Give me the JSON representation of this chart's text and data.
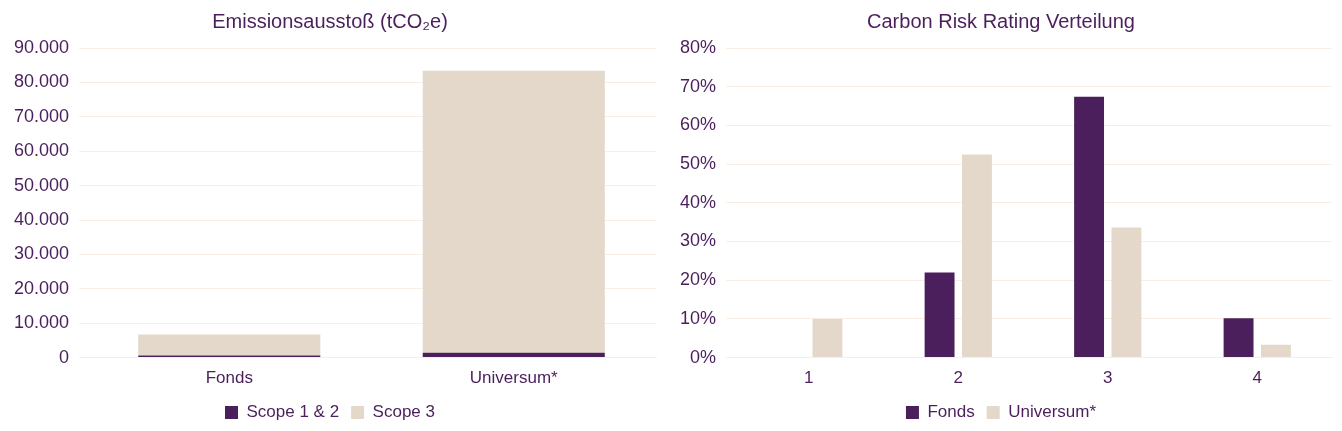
{
  "chart_data": [
    {
      "type": "bar",
      "title": "Emissionsausstoß (tCO₂e)",
      "categories": [
        "Fonds",
        "Universum*"
      ],
      "stacked": true,
      "series": [
        {
          "name": "Scope 1 & 2",
          "color": "#4a1f5c",
          "values": [
            600,
            1400
          ]
        },
        {
          "name": "Scope 3",
          "color": "#e3d8c9",
          "values": [
            6100,
            82000
          ]
        }
      ],
      "ylim": [
        0,
        90000
      ],
      "yticks": [
        {
          "value": 0,
          "label": "0"
        },
        {
          "value": 10000,
          "label": "10.000"
        },
        {
          "value": 20000,
          "label": "20.000"
        },
        {
          "value": 30000,
          "label": "30.000"
        },
        {
          "value": 40000,
          "label": "40.000"
        },
        {
          "value": 50000,
          "label": "50.000"
        },
        {
          "value": 60000,
          "label": "60.000"
        },
        {
          "value": 70000,
          "label": "70.000"
        },
        {
          "value": 80000,
          "label": "80.000"
        },
        {
          "value": 90000,
          "label": "90.000"
        }
      ],
      "grid": "y",
      "legend": "bottom"
    },
    {
      "type": "bar",
      "title": "Carbon Risk Rating Verteilung",
      "categories": [
        "1",
        "2",
        "3",
        "4"
      ],
      "series": [
        {
          "name": "Fonds",
          "color": "#4a1f5c",
          "values": [
            0,
            22,
            67.4,
            10.2
          ]
        },
        {
          "name": "Universum*",
          "color": "#e3d8c9",
          "values": [
            10,
            52.5,
            33.6,
            3.3
          ]
        }
      ],
      "ylim": [
        0,
        80
      ],
      "yticks": [
        {
          "value": 0,
          "label": "0%"
        },
        {
          "value": 10,
          "label": "10%"
        },
        {
          "value": 20,
          "label": "20%"
        },
        {
          "value": 30,
          "label": "30%"
        },
        {
          "value": 40,
          "label": "40%"
        },
        {
          "value": 50,
          "label": "50%"
        },
        {
          "value": 60,
          "label": "60%"
        },
        {
          "value": 70,
          "label": "70%"
        },
        {
          "value": 80,
          "label": "80%"
        }
      ],
      "grid": "y",
      "legend": "bottom"
    }
  ]
}
